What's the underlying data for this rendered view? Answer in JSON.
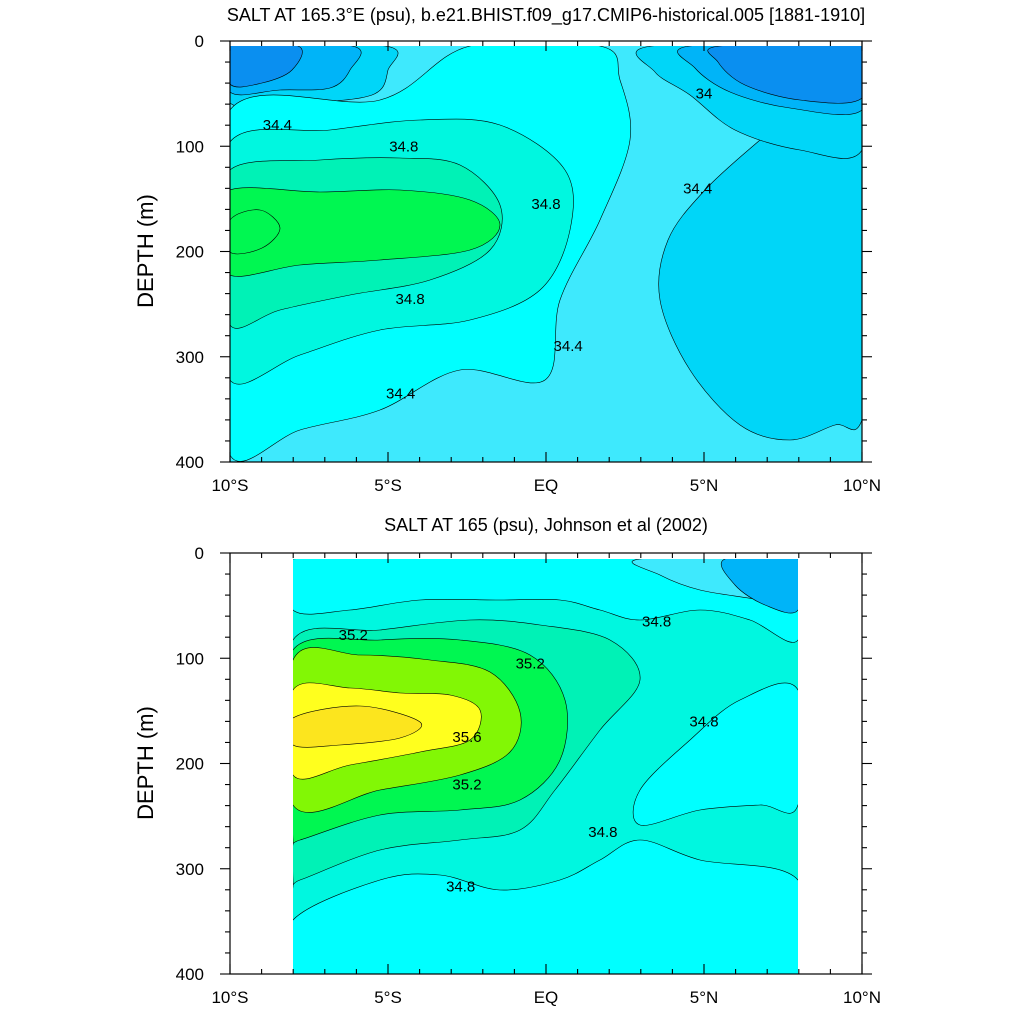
{
  "colors": {
    "s34_0": "#0a8ff0",
    "s34_2": "#00b4f8",
    "s34_4": "#00d6f8",
    "s34_6": "#3ee9fd",
    "s34_8": "#00ffff",
    "s35_0": "#00f7e0",
    "s35_2": "#00f2b6",
    "s35_4": "#00f751",
    "s35_6": "#82f705",
    "s35_8": "#ffff1e",
    "s36_0": "#fce51e"
  },
  "chart_data": [
    {
      "type": "contour",
      "title": "SALT AT 165.3°E (psu), b.e21.BHIST.f09_g17.CMIP6-historical.005 [1881-1910]",
      "xlabel": "",
      "ylabel": "DEPTH (m)",
      "xlim": [
        -10,
        10
      ],
      "ylim": [
        400,
        0
      ],
      "x_ticks": [
        -10,
        -5,
        0,
        5,
        10
      ],
      "x_tick_labels": [
        "10°S",
        "5°S",
        "EQ",
        "5°N",
        "10°N"
      ],
      "y_ticks": [
        0,
        100,
        200,
        300,
        400
      ],
      "y_tick_labels": [
        "0",
        "100",
        "200",
        "300",
        "400"
      ],
      "data_extent": {
        "x": [
          -10,
          10
        ],
        "depth": [
          5,
          400
        ]
      },
      "contour_levels": [
        34.0,
        34.2,
        34.4,
        34.6,
        34.8,
        35.0,
        35.2
      ],
      "contour_labels": [
        {
          "text": "34.4",
          "x": -8.5,
          "depth": 80
        },
        {
          "text": "34.8",
          "x": -4.5,
          "depth": 100
        },
        {
          "text": "34.8",
          "x": 0.0,
          "depth": 155
        },
        {
          "text": "34.8",
          "x": -4.3,
          "depth": 245
        },
        {
          "text": "34.4",
          "x": 0.7,
          "depth": 290
        },
        {
          "text": "34.4",
          "x": -4.6,
          "depth": 335
        },
        {
          "text": "34.4",
          "x": 4.8,
          "depth": 140
        },
        {
          "text": "34",
          "x": 5.0,
          "depth": 50
        }
      ]
    },
    {
      "type": "contour",
      "title": "SALT AT 165 (psu), Johnson et al (2002)",
      "xlabel": "",
      "ylabel": "DEPTH (m)",
      "xlim": [
        -10,
        10
      ],
      "ylim": [
        400,
        0
      ],
      "x_ticks": [
        -10,
        -5,
        0,
        5,
        10
      ],
      "x_tick_labels": [
        "10°S",
        "5°S",
        "EQ",
        "5°N",
        "10°N"
      ],
      "y_ticks": [
        0,
        100,
        200,
        300,
        400
      ],
      "y_tick_labels": [
        "0",
        "100",
        "200",
        "300",
        "400"
      ],
      "data_extent": {
        "x": [
          -8,
          8
        ],
        "depth": [
          5,
          400
        ]
      },
      "contour_levels": [
        34.4,
        34.6,
        34.8,
        35.0,
        35.2,
        35.4,
        35.6,
        35.8
      ],
      "contour_labels": [
        {
          "text": "35.2",
          "x": -6.1,
          "depth": 78
        },
        {
          "text": "35.2",
          "x": -0.5,
          "depth": 105
        },
        {
          "text": "35.6",
          "x": -2.5,
          "depth": 175
        },
        {
          "text": "35.2",
          "x": -2.5,
          "depth": 220
        },
        {
          "text": "34.8",
          "x": 1.8,
          "depth": 265
        },
        {
          "text": "34.8",
          "x": -2.7,
          "depth": 317
        },
        {
          "text": "34.8",
          "x": 3.5,
          "depth": 65
        },
        {
          "text": "34.8",
          "x": 5.0,
          "depth": 160
        }
      ]
    }
  ]
}
